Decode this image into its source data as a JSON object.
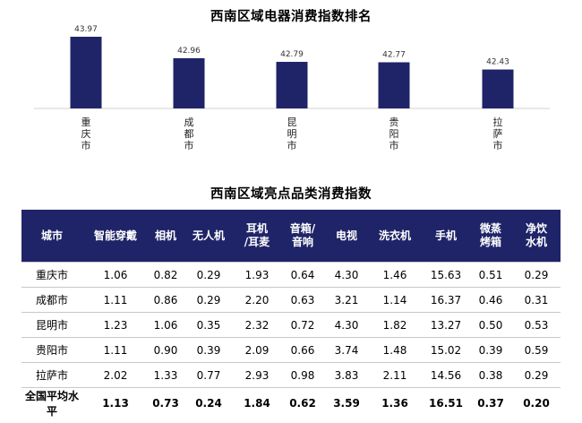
{
  "chart_title": "西南区域电器消费指数排名",
  "chart_data": {
    "type": "bar",
    "title": "西南区域电器消费指数排名",
    "categories": [
      "重庆市",
      "成都市",
      "昆明市",
      "贵阳市",
      "拉萨市"
    ],
    "values": [
      43.97,
      42.96,
      42.79,
      42.77,
      42.43
    ],
    "data_labels": [
      "43.97",
      "42.96",
      "42.79",
      "42.77",
      "42.43"
    ],
    "ylim": [
      40.6,
      44.3
    ],
    "bar_color": "#1f2468",
    "xlabel": "",
    "ylabel": "",
    "grid": false
  },
  "table": {
    "title": "西南区域亮点品类消费指数",
    "headers": [
      [
        "城市"
      ],
      [
        "智能穿戴"
      ],
      [
        "相机"
      ],
      [
        "无人机"
      ],
      [
        "耳机",
        "/耳麦"
      ],
      [
        "音箱/",
        "音响"
      ],
      [
        "电视"
      ],
      [
        "洗衣机"
      ],
      [
        "手机"
      ],
      [
        "微蒸",
        "烤箱"
      ],
      [
        "净饮",
        "水机"
      ]
    ],
    "rows": [
      [
        "重庆市",
        "1.06",
        "0.82",
        "0.29",
        "1.93",
        "0.64",
        "4.30",
        "1.46",
        "15.63",
        "0.51",
        "0.29"
      ],
      [
        "成都市",
        "1.11",
        "0.86",
        "0.29",
        "2.20",
        "0.63",
        "3.21",
        "1.14",
        "16.37",
        "0.46",
        "0.31"
      ],
      [
        "昆明市",
        "1.23",
        "1.06",
        "0.35",
        "2.32",
        "0.72",
        "4.30",
        "1.82",
        "13.27",
        "0.50",
        "0.53"
      ],
      [
        "贵阳市",
        "1.11",
        "0.90",
        "0.39",
        "2.09",
        "0.66",
        "3.74",
        "1.48",
        "15.02",
        "0.39",
        "0.59"
      ],
      [
        "拉萨市",
        "2.02",
        "1.33",
        "0.77",
        "2.93",
        "0.98",
        "3.83",
        "2.11",
        "14.56",
        "0.38",
        "0.29"
      ]
    ],
    "average_row": [
      "全国平均水平",
      "1.13",
      "0.73",
      "0.24",
      "1.84",
      "0.62",
      "3.59",
      "1.36",
      "16.51",
      "0.37",
      "0.20"
    ],
    "header_color": "#1f2468"
  }
}
